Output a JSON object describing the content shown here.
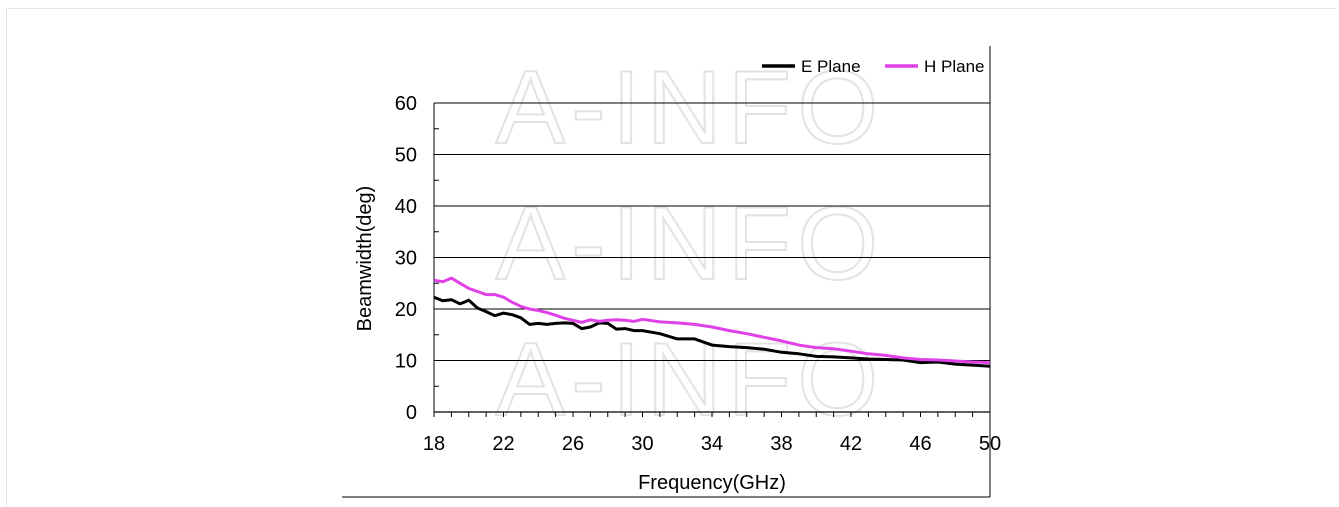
{
  "watermark": "A-INFO",
  "chart_data": {
    "type": "line",
    "title": "",
    "xlabel": "Frequency(GHz)",
    "ylabel": "Beamwidth(deg)",
    "xlim": [
      18,
      50
    ],
    "ylim": [
      0,
      60
    ],
    "x_ticks": [
      18,
      22,
      26,
      30,
      34,
      38,
      42,
      46,
      50
    ],
    "y_ticks": [
      0,
      10,
      20,
      30,
      40,
      50,
      60
    ],
    "grid": "horizontal major gridlines",
    "legend_position": "top-right",
    "series": [
      {
        "name": "E Plane",
        "color": "#000000",
        "x": [
          18,
          18.5,
          19,
          19.5,
          20,
          20.5,
          21,
          21.5,
          22,
          22.5,
          23,
          23.5,
          24,
          24.5,
          25,
          25.5,
          26,
          26.5,
          27,
          27.5,
          28,
          28.5,
          29,
          29.5,
          30,
          31,
          32,
          33,
          34,
          35,
          36,
          37,
          38,
          39,
          40,
          41,
          42,
          43,
          44,
          45,
          46,
          47,
          48,
          49,
          50
        ],
        "y": [
          22.3,
          21.6,
          21.8,
          21.0,
          21.7,
          20.2,
          19.5,
          18.7,
          19.2,
          18.9,
          18.3,
          17.0,
          17.2,
          17.0,
          17.2,
          17.3,
          17.2,
          16.2,
          16.5,
          17.3,
          17.2,
          16.1,
          16.2,
          15.8,
          15.8,
          15.2,
          14.2,
          14.2,
          13.0,
          12.7,
          12.5,
          12.2,
          11.6,
          11.3,
          10.8,
          10.7,
          10.5,
          10.3,
          10.2,
          10.1,
          9.6,
          9.7,
          9.3,
          9.1,
          8.9
        ]
      },
      {
        "name": "H Plane",
        "color": "#e040e8",
        "x": [
          18,
          18.5,
          19,
          19.5,
          20,
          20.5,
          21,
          21.5,
          22,
          22.5,
          23,
          23.5,
          24,
          24.5,
          25,
          25.5,
          26,
          26.5,
          27,
          27.5,
          28,
          28.5,
          29,
          29.5,
          30,
          31,
          32,
          33,
          34,
          35,
          36,
          37,
          38,
          39,
          40,
          41,
          42,
          43,
          44,
          45,
          46,
          47,
          48,
          49,
          50
        ],
        "y": [
          25.6,
          25.3,
          26.0,
          25.0,
          24.0,
          23.4,
          22.8,
          22.8,
          22.3,
          21.3,
          20.5,
          20.0,
          19.7,
          19.3,
          18.8,
          18.2,
          17.8,
          17.4,
          17.9,
          17.6,
          17.8,
          17.9,
          17.8,
          17.6,
          18.0,
          17.5,
          17.3,
          17.0,
          16.5,
          15.8,
          15.2,
          14.5,
          13.8,
          13.0,
          12.5,
          12.3,
          11.8,
          11.3,
          11.0,
          10.5,
          10.2,
          10.1,
          9.9,
          9.7,
          9.6
        ]
      }
    ]
  }
}
